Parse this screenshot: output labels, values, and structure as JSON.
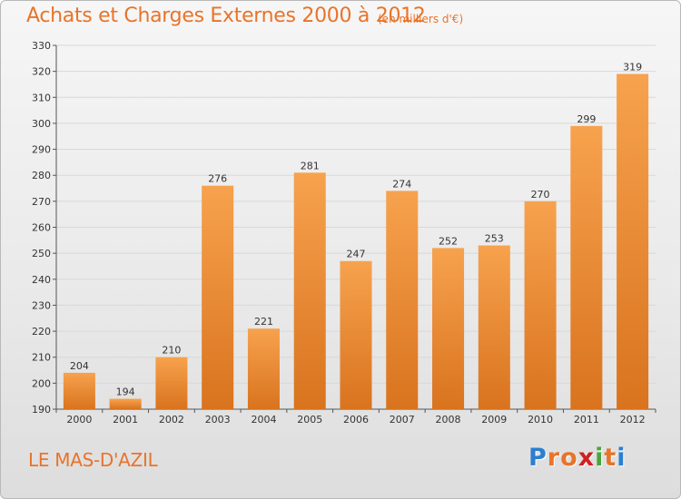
{
  "title": "Achats et Charges Externes 2000 à 2012",
  "unit": "(en milliers d'€)",
  "commune": "LE MAS-D'AZIL",
  "logo": {
    "text": "Proxiti",
    "letters": [
      "P",
      "r",
      "o",
      "x",
      "i",
      "t",
      "i"
    ],
    "colors": [
      "#2b7fd1",
      "#e8742a",
      "#e8742a",
      "#d02020",
      "#4aa43a",
      "#e8742a",
      "#2b7fd1"
    ]
  },
  "colors": {
    "bar_light": "#f7a24e",
    "bar_dark": "#d9731e",
    "accent": "#e8742a",
    "grid": "#d8d8d8"
  },
  "chart_data": {
    "type": "bar",
    "categories": [
      "2000",
      "2001",
      "2002",
      "2003",
      "2004",
      "2005",
      "2006",
      "2007",
      "2008",
      "2009",
      "2010",
      "2011",
      "2012"
    ],
    "values": [
      204,
      194,
      210,
      276,
      221,
      281,
      247,
      274,
      252,
      253,
      270,
      299,
      319
    ],
    "ylim": [
      190,
      330
    ],
    "yticks": [
      190,
      200,
      210,
      220,
      230,
      240,
      250,
      260,
      270,
      280,
      290,
      300,
      310,
      320,
      330
    ],
    "grid": true
  }
}
